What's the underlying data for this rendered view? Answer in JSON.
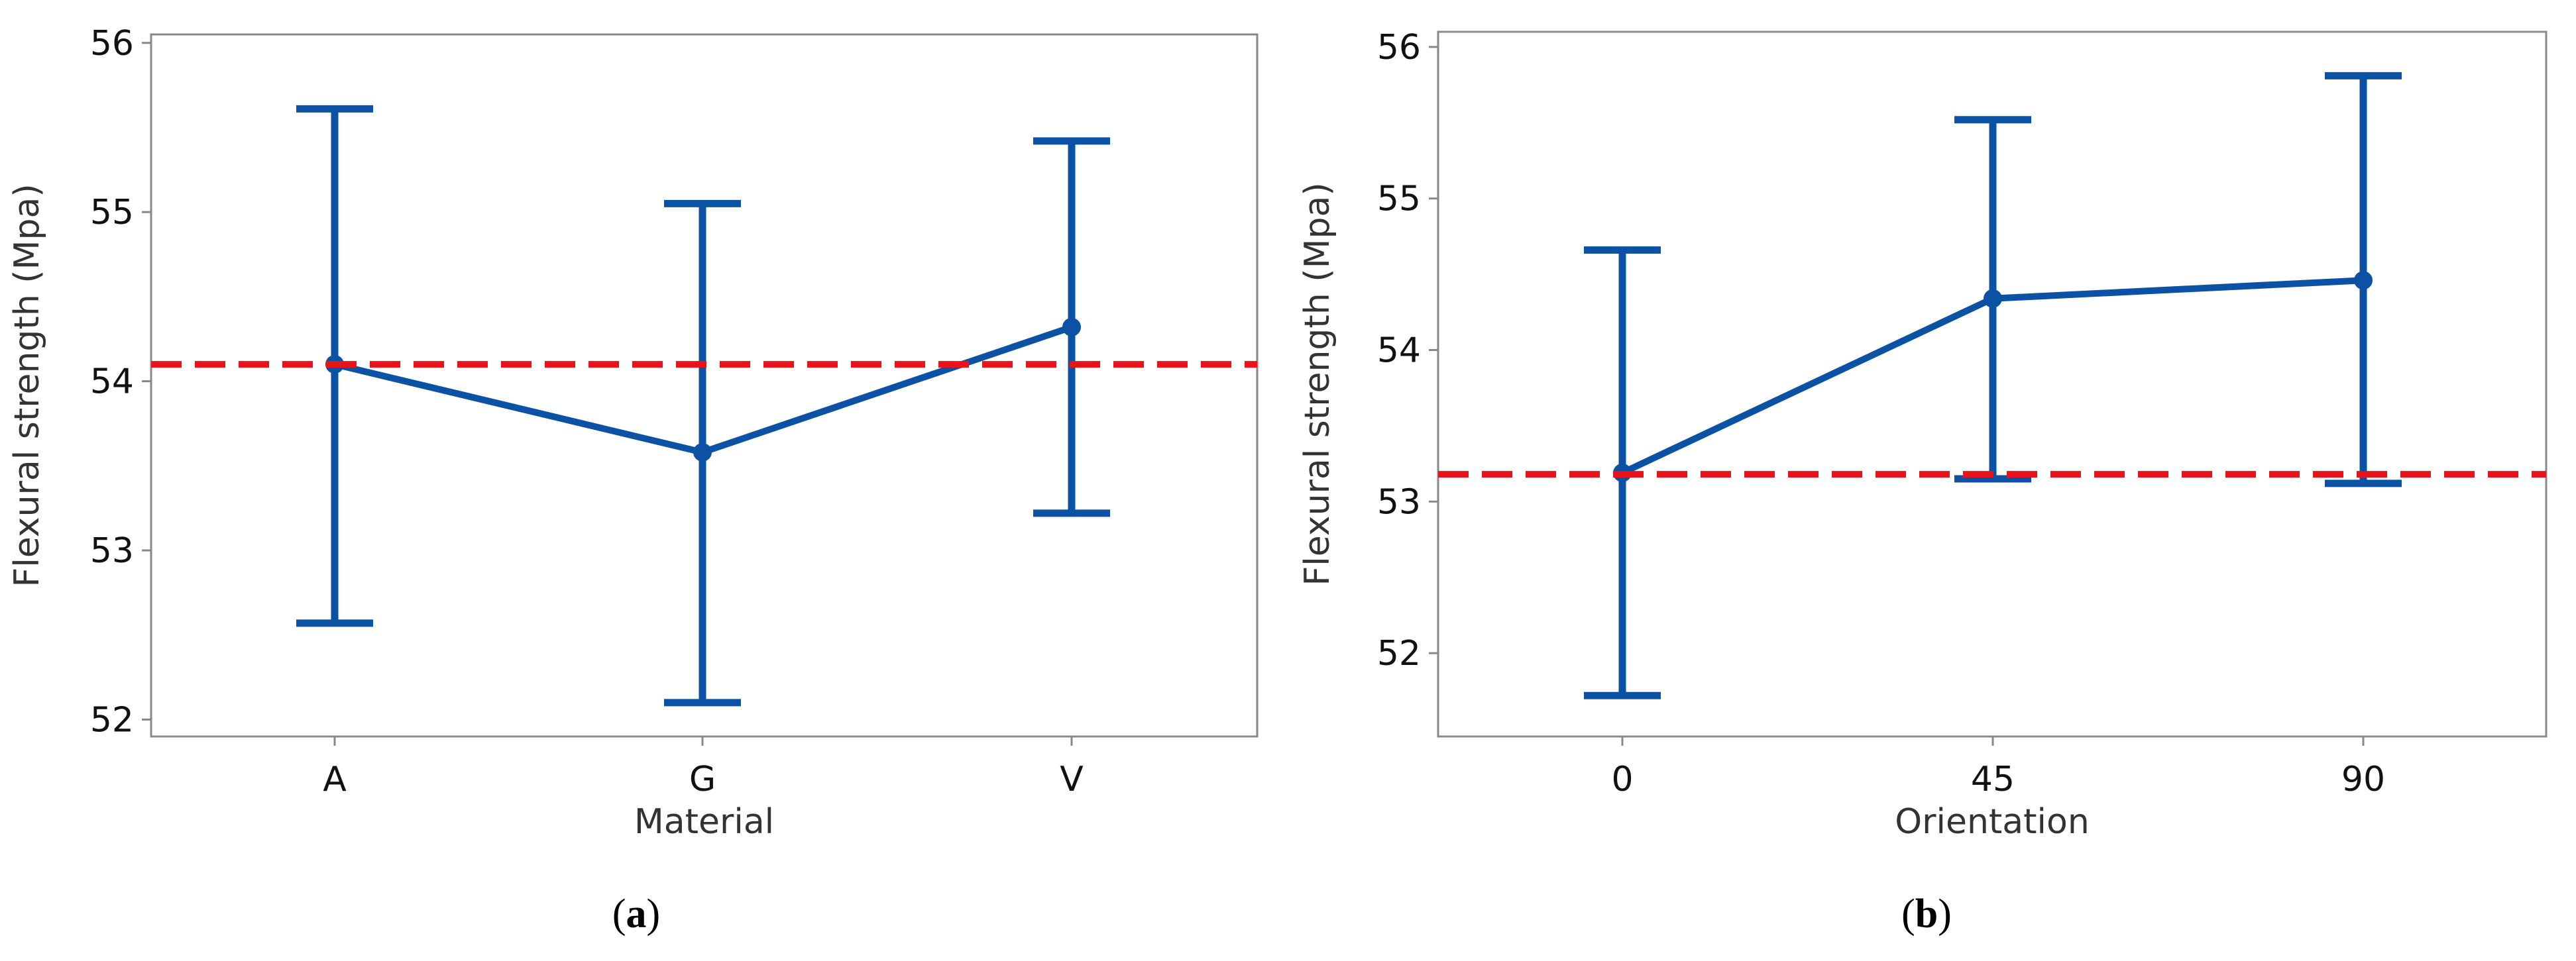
{
  "colors": {
    "series": "#0b52a5",
    "reference": "#e8141b",
    "frame": "#888888"
  },
  "chart_data": [
    {
      "type": "line",
      "panel_label": "a",
      "xlabel": "Material",
      "ylabel": "Flexural strength (Mpa)",
      "categories": [
        "A",
        "G",
        "V"
      ],
      "ylim": [
        51.9,
        56.05
      ],
      "yticks": [
        52,
        53,
        54,
        55,
        56
      ],
      "series": [
        {
          "means": [
            54.1,
            53.58,
            54.32
          ],
          "lower": [
            52.57,
            52.1,
            53.22
          ],
          "upper": [
            55.61,
            55.05,
            55.42
          ]
        }
      ],
      "reference_line": 54.1,
      "grid": false
    },
    {
      "type": "line",
      "panel_label": "b",
      "xlabel": "Orientation",
      "ylabel": "Flexural strength (Mpa)",
      "categories": [
        "0",
        "45",
        "90"
      ],
      "ylim": [
        51.45,
        56.1
      ],
      "yticks": [
        52,
        53,
        54,
        55,
        56
      ],
      "series": [
        {
          "means": [
            53.19,
            54.34,
            54.46
          ],
          "lower": [
            51.72,
            53.15,
            53.12
          ],
          "upper": [
            54.66,
            55.52,
            55.81
          ]
        }
      ],
      "reference_line": 53.18,
      "grid": false
    }
  ]
}
